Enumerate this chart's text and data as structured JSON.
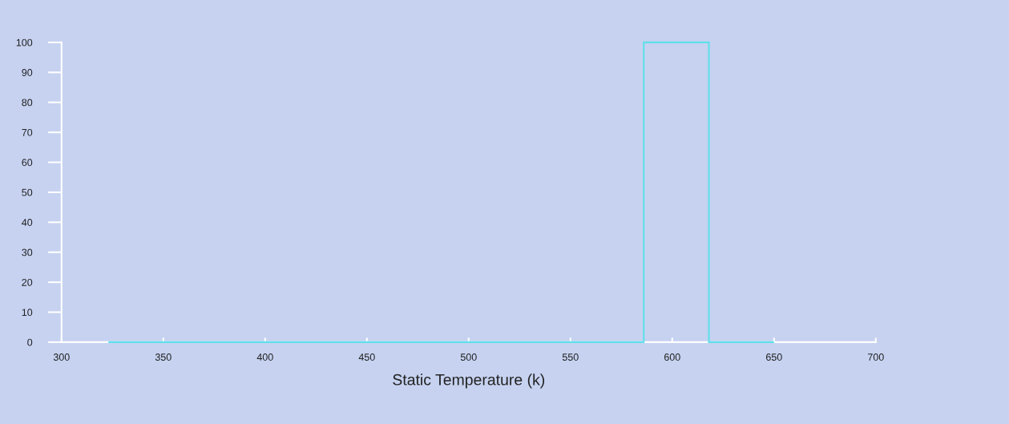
{
  "chart_data": {
    "type": "histogram",
    "xlabel": "Static Temperature (k)",
    "bins": [
      323,
      586,
      618,
      650
    ],
    "values": [
      0,
      100,
      0
    ],
    "color": "#5fe0ea",
    "xlim": [
      300,
      700
    ],
    "xticks": [
      300,
      350,
      400,
      450,
      500,
      550,
      600,
      650,
      700
    ],
    "ylim": [
      0,
      100
    ],
    "yticks": [
      0,
      10,
      20,
      30,
      40,
      50,
      60,
      70,
      80,
      90,
      100
    ],
    "grid": false
  }
}
